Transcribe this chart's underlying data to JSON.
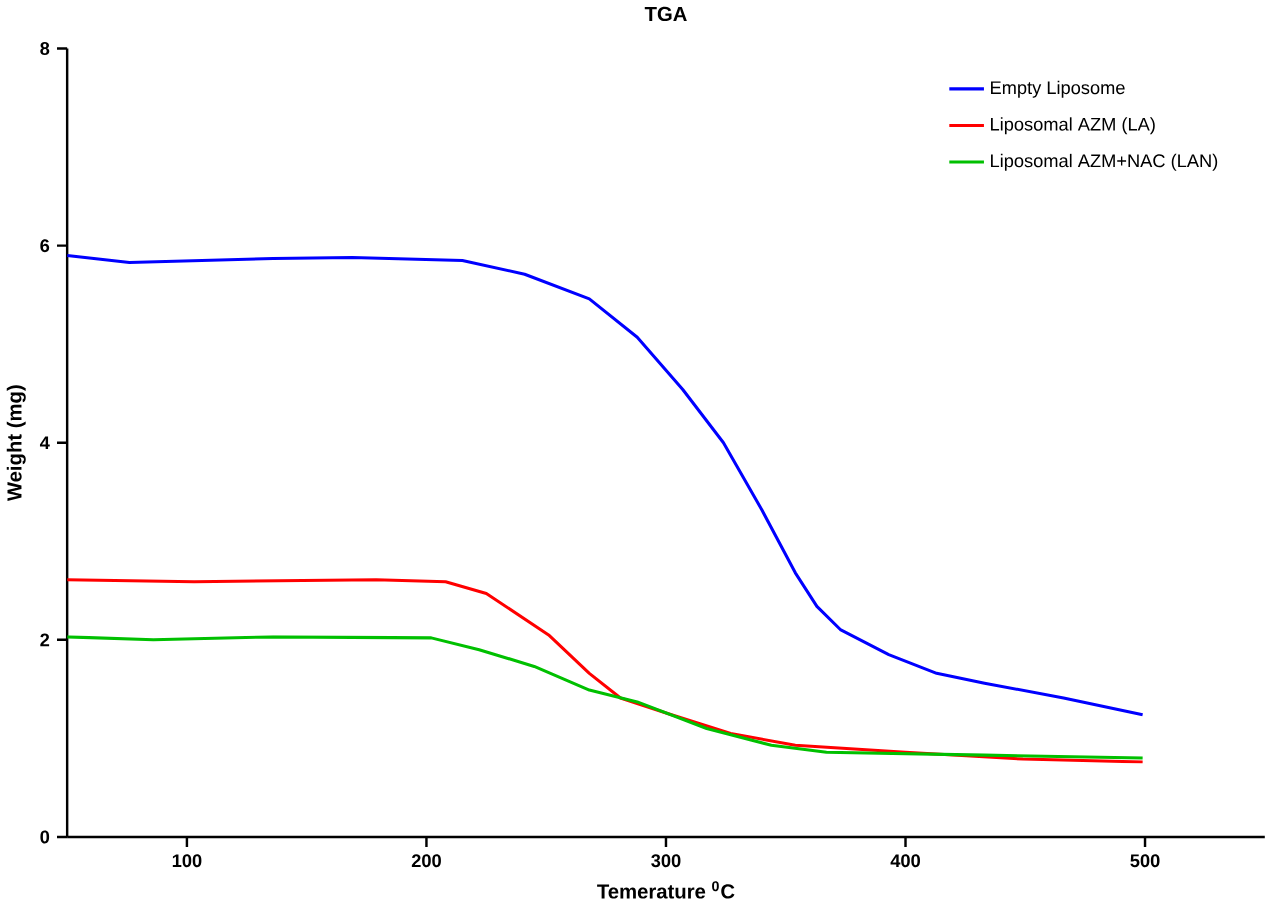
{
  "chart_data": {
    "type": "line",
    "title": "TGA",
    "xlabel": "Temerature $^{0}$C",
    "ylabel": "Weight (mg)",
    "xlim": [
      50,
      550
    ],
    "ylim": [
      0,
      8
    ],
    "xticks": [
      100,
      200,
      300,
      400,
      500
    ],
    "yticks": [
      0,
      2,
      4,
      6,
      8
    ],
    "grid": false,
    "legend": "top right",
    "marker": "none",
    "line_style": "solid",
    "series": [
      {
        "name": "Empty Liposome",
        "color": "#0000ff",
        "x": [
          50,
          76,
          136,
          169,
          215,
          241,
          268,
          288,
          307,
          324,
          340,
          354,
          363,
          373,
          393,
          413,
          433,
          466,
          499
        ],
        "values": [
          5.9,
          5.83,
          5.87,
          5.88,
          5.85,
          5.71,
          5.46,
          5.07,
          4.54,
          4.0,
          3.32,
          2.68,
          2.34,
          2.1,
          1.85,
          1.66,
          1.56,
          1.41,
          1.24
        ]
      },
      {
        "name": "Liposomal AZM (LA)",
        "color": "#ff0000",
        "x": [
          50,
          103,
          179,
          208,
          225,
          251,
          268,
          281,
          301,
          327,
          354,
          400,
          449,
          499
        ],
        "values": [
          2.61,
          2.59,
          2.61,
          2.59,
          2.47,
          2.05,
          1.66,
          1.41,
          1.25,
          1.05,
          0.93,
          0.86,
          0.79,
          0.76
        ]
      },
      {
        "name": "Liposomal AZM+NAC (LAN)",
        "color": "#00c000",
        "x": [
          50,
          86,
          136,
          202,
          222,
          245,
          268,
          288,
          317,
          344,
          367,
          433,
          499
        ],
        "values": [
          2.03,
          2.0,
          2.03,
          2.02,
          1.9,
          1.73,
          1.49,
          1.37,
          1.1,
          0.93,
          0.86,
          0.83,
          0.8
        ]
      }
    ]
  }
}
